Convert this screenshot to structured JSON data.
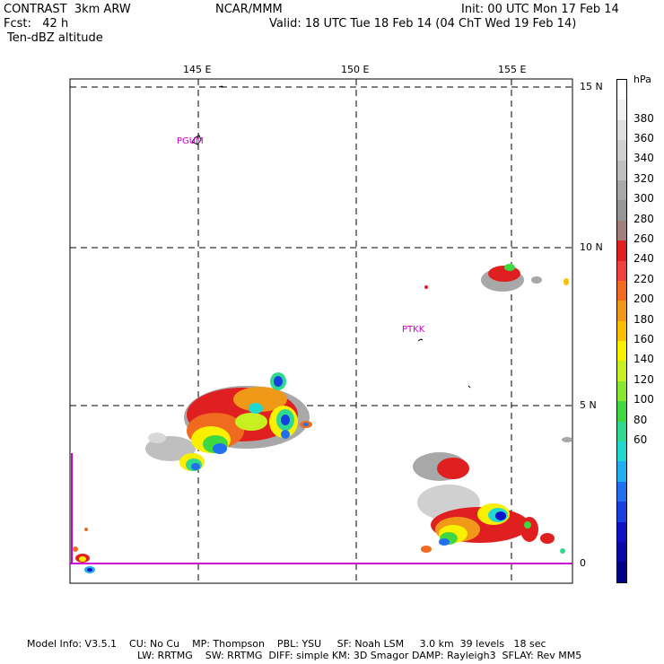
{
  "header": {
    "model": "CONTRAST  3km ARW",
    "fcst": "Fcst:   42 h",
    "field": "Ten-dBZ altitude",
    "org": "NCAR/MMM",
    "init": "Init: 00 UTC Mon 17 Feb 14",
    "valid": "Valid: 18 UTC Tue 18 Feb 14 (04 ChT Wed 19 Feb 14)"
  },
  "map": {
    "lon_ticks": [
      "145 E",
      "150 E",
      "155 E"
    ],
    "lat_ticks": [
      "15 N",
      "10 N",
      "5 N",
      "0"
    ],
    "stations": [
      {
        "name": "PGUM"
      },
      {
        "name": "PTKK"
      }
    ]
  },
  "colorbar": {
    "unit": "hPa",
    "labels": [
      "380",
      "360",
      "340",
      "320",
      "300",
      "280",
      "260",
      "240",
      "220",
      "200",
      "180",
      "160",
      "140",
      "120",
      "100",
      "80",
      "60"
    ],
    "colors": [
      "#ffffff",
      "#f0f0f0",
      "#e0e0e0",
      "#d0d0d0",
      "#bfbfbf",
      "#a8a8a8",
      "#969696",
      "#a08078",
      "#e02020",
      "#f04040",
      "#f06a20",
      "#f09818",
      "#f8c000",
      "#f8f000",
      "#c8f020",
      "#88e830",
      "#40d840",
      "#30d890",
      "#20d8d0",
      "#20b0f0",
      "#2070f0",
      "#1840e0",
      "#1010c8",
      "#0808a8",
      "#000088"
    ]
  },
  "footer": {
    "line1": "Model Info: V3.5.1    CU: No Cu    MP: Thompson    PBL: YSU     SF: Noah LSM     3.0 km  39 levels   18 sec",
    "line2": "LW: RRTMG    SW: RRTMG  DIFF: simple KM: 3D Smagor DAMP: Rayleigh3  SFLAY: Rev MM5"
  }
}
